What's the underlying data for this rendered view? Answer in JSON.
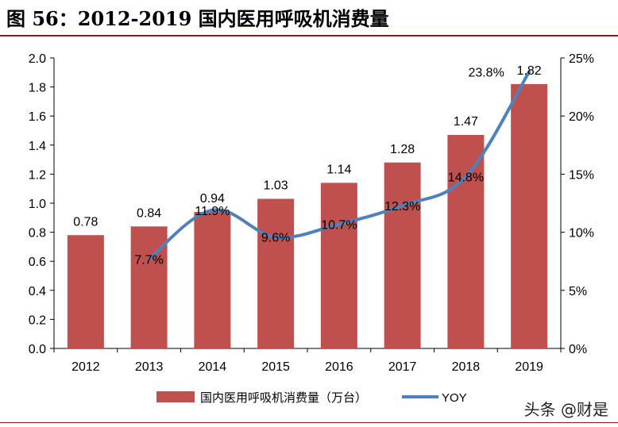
{
  "title": "图 56：2012-2019 国内医用呼吸机消费量",
  "watermark": "头条 @财是",
  "colors": {
    "bar": "#c0504d",
    "line": "#4f81bd",
    "rule": "#8b1a1a"
  },
  "chart_data": {
    "type": "bar",
    "categories": [
      "2012",
      "2013",
      "2014",
      "2015",
      "2016",
      "2017",
      "2018",
      "2019"
    ],
    "series": [
      {
        "name": "国内医用呼吸机消费量（万台）",
        "type": "bar",
        "axis": "left",
        "values": [
          0.78,
          0.84,
          0.94,
          1.03,
          1.14,
          1.28,
          1.47,
          1.82
        ],
        "labels": [
          "0.78",
          "0.84",
          "0.94",
          "1.03",
          "1.14",
          "1.28",
          "1.47",
          "1.82"
        ]
      },
      {
        "name": "YOY",
        "type": "line",
        "axis": "right",
        "values": [
          null,
          7.7,
          11.9,
          9.6,
          10.7,
          12.3,
          14.8,
          23.8
        ],
        "labels": [
          "",
          "7.7%",
          "11.9%",
          "9.6%",
          "10.7%",
          "12.3%",
          "14.8%",
          "23.8%"
        ]
      }
    ],
    "ylim": [
      0,
      2.0
    ],
    "yticks": [
      "0.0",
      "0.2",
      "0.4",
      "0.6",
      "0.8",
      "1.0",
      "1.2",
      "1.4",
      "1.6",
      "1.8",
      "2.0"
    ],
    "y2lim": [
      0,
      25
    ],
    "y2ticks": [
      "0%",
      "5%",
      "10%",
      "15%",
      "20%",
      "25%"
    ],
    "grid": false,
    "legend_position": "bottom"
  }
}
